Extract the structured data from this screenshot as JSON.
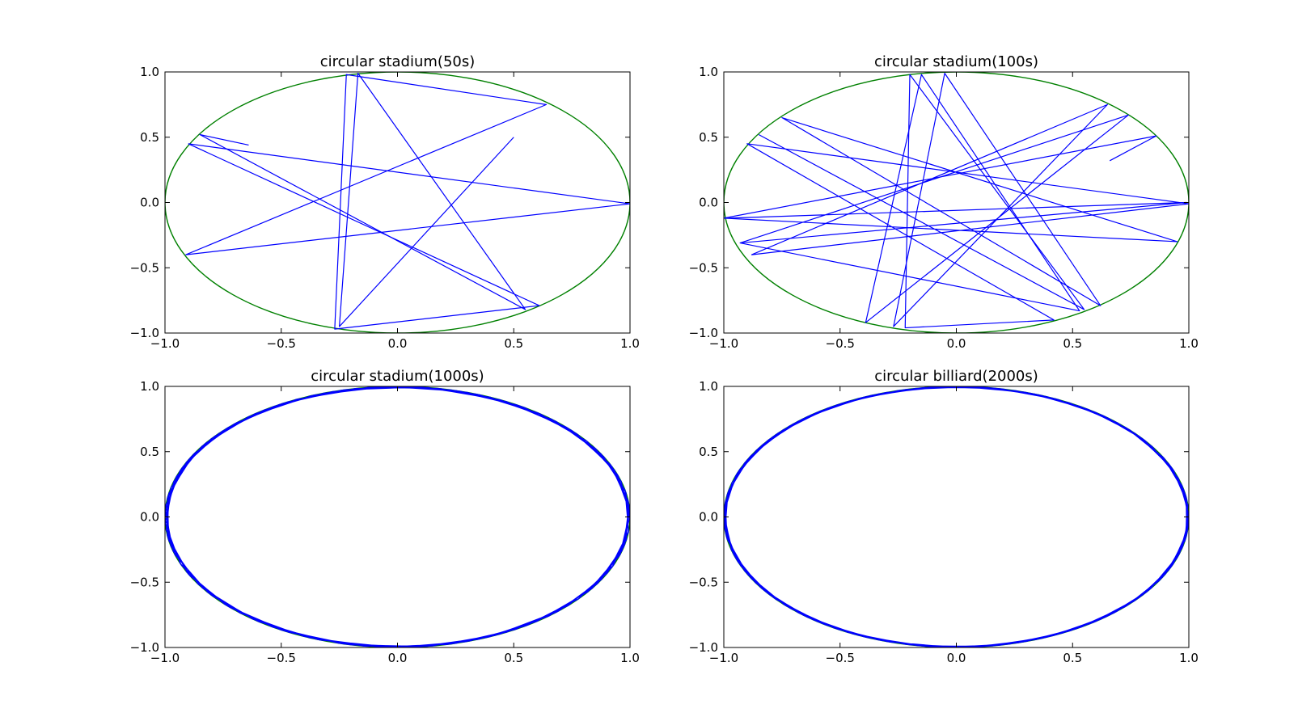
{
  "chart_data": [
    {
      "type": "line",
      "title": "circular stadium(50s)",
      "xlabel": "",
      "ylabel": "",
      "xlim": [
        -1.0,
        1.0
      ],
      "ylim": [
        -1.0,
        1.0
      ],
      "xticks": [
        "−1.0",
        "−0.5",
        "0.0",
        "0.5",
        "1.0"
      ],
      "yticks": [
        "−1.0",
        "−0.5",
        "0.0",
        "0.5",
        "1.0"
      ],
      "boundary_color": "#008000",
      "trajectory_color": "#0000ff",
      "series": [
        {
          "x": [
            -0.64,
            -0.85,
            0.55,
            -0.17,
            -0.25,
            0.5
          ],
          "y": [
            0.44,
            0.52,
            -0.82,
            0.99,
            -0.95,
            0.5
          ]
        },
        {
          "x": [
            -0.9,
            1.0,
            -0.91,
            0.64,
            -0.22,
            -0.27,
            0.61,
            -0.9
          ],
          "y": [
            0.45,
            -0.01,
            -0.4,
            0.75,
            0.98,
            -0.97,
            -0.79,
            0.45
          ]
        }
      ]
    },
    {
      "type": "line",
      "title": "circular stadium(100s)",
      "xlabel": "",
      "ylabel": "",
      "xlim": [
        -1.0,
        1.0
      ],
      "ylim": [
        -1.0,
        1.0
      ],
      "xticks": [
        "−1.0",
        "−0.5",
        "0.0",
        "0.5",
        "1.0"
      ],
      "yticks": [
        "−1.0",
        "−0.5",
        "0.0",
        "0.5",
        "1.0"
      ],
      "boundary_color": "#008000",
      "trajectory_color": "#0000ff",
      "series": [
        {
          "x": [
            -0.85,
            0.55,
            -0.2,
            -0.22,
            0.42,
            -0.9,
            1.0,
            -0.88,
            0.65,
            -0.27,
            -0.05,
            0.62,
            -0.75,
            0.95,
            -1.0,
            0.86,
            0.66
          ],
          "y": [
            0.52,
            -0.82,
            0.98,
            -0.96,
            -0.9,
            0.45,
            -0.01,
            -0.4,
            0.75,
            -0.95,
            0.99,
            -0.79,
            0.65,
            -0.3,
            -0.12,
            0.51,
            0.32
          ]
        },
        {
          "x": [
            -0.98,
            0.99,
            -0.93,
            0.74,
            -0.39,
            -0.15,
            0.53,
            -0.93
          ],
          "y": [
            -0.12,
            0.0,
            -0.31,
            0.67,
            -0.92,
            0.98,
            -0.83,
            -0.31
          ]
        }
      ]
    },
    {
      "type": "line",
      "title": "circular stadium(1000s)",
      "xlabel": "",
      "ylabel": "",
      "xlim": [
        -1.0,
        1.0
      ],
      "ylim": [
        -1.0,
        1.0
      ],
      "xticks": [
        "−1.0",
        "−0.5",
        "0.0",
        "0.5",
        "1.0"
      ],
      "yticks": [
        "−1.0",
        "−0.5",
        "0.0",
        "0.5",
        "1.0"
      ],
      "boundary_color": "#008000",
      "trajectory_color": "#0000ff",
      "dense_trajectory": {
        "reflections": 220,
        "inner_radius": 0.15,
        "start_angle_deg": 140
      }
    },
    {
      "type": "line",
      "title": "circular billiard(2000s)",
      "xlabel": "",
      "ylabel": "",
      "xlim": [
        -1.0,
        1.0
      ],
      "ylim": [
        -1.0,
        1.0
      ],
      "xticks": [
        "−1.0",
        "−0.5",
        "0.0",
        "0.5",
        "1.0"
      ],
      "yticks": [
        "−1.0",
        "−0.5",
        "0.0",
        "0.5",
        "1.0"
      ],
      "boundary_color": "#008000",
      "trajectory_color": "#0000ff",
      "dense_trajectory": {
        "reflections": 360,
        "inner_radius": 0.13,
        "start_angle_deg": 200
      }
    }
  ]
}
